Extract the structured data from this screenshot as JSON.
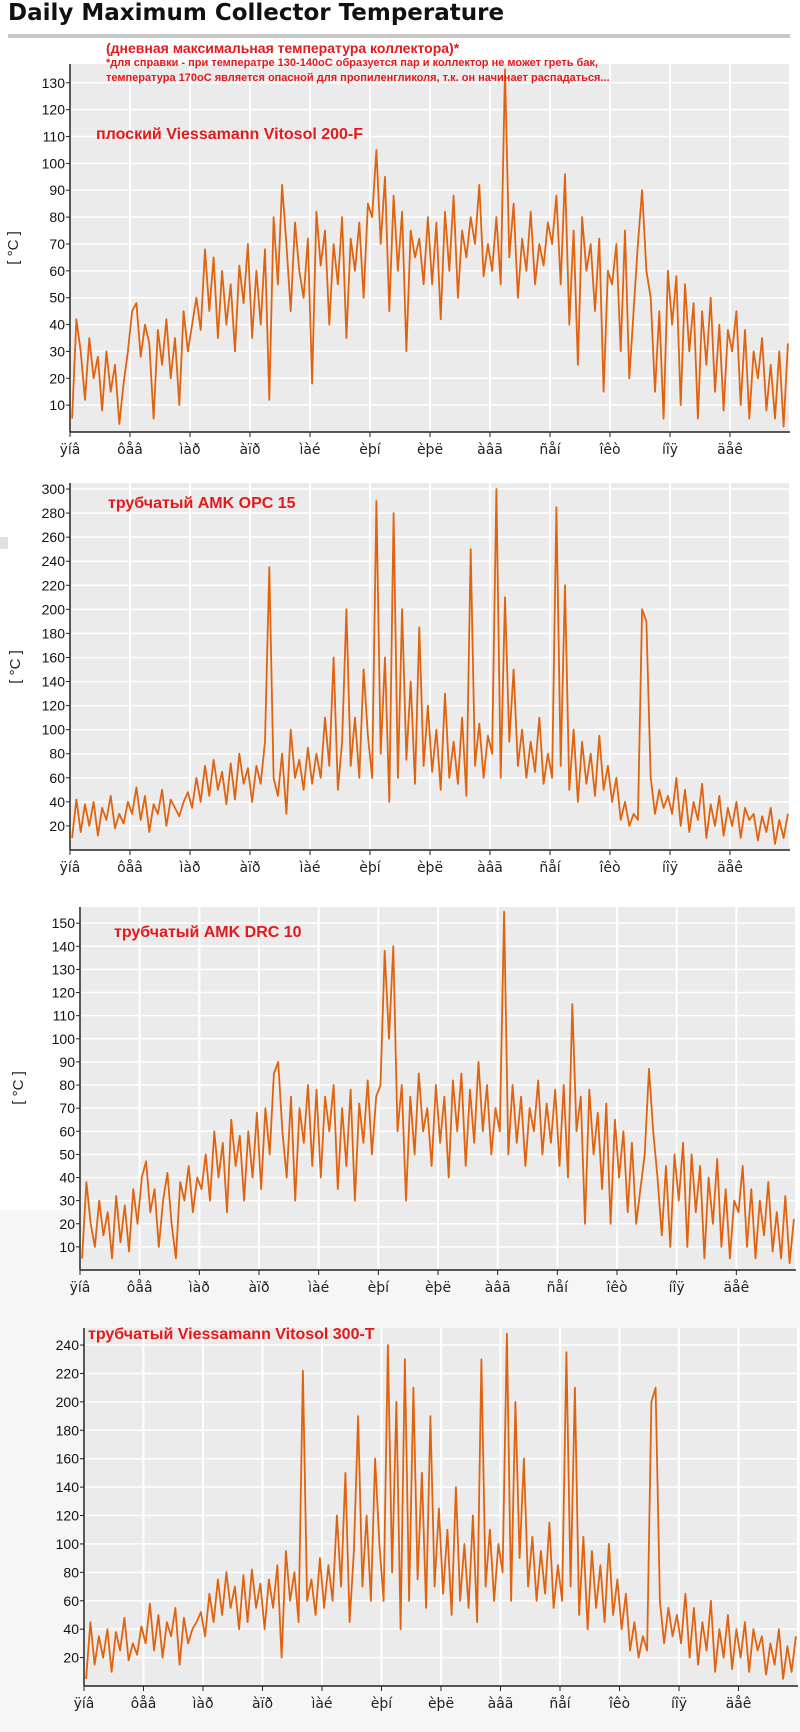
{
  "page": {
    "title": "Daily Maximum Collector Temperature",
    "note_heading": "(дневная максимальная температура коллектора)*",
    "note_line1": "*для справки - при температре 130-140оС образуется пар и коллектор не может греть бак,",
    "note_line2": "температура 170оС является опасной для пропиленгликоля, т.к. он начинает распадаться..."
  },
  "colors": {
    "line": "#e06410",
    "plot_bg": "#ebebeb",
    "grid": "#ffffff",
    "label": "#e31a1c"
  },
  "month_labels": [
    "ÿíâ",
    "ôåâ",
    "ìàð",
    "àïð",
    "ìàé",
    "èþí",
    "èþë",
    "àâã",
    "ñåí",
    "îêò",
    "íîÿ",
    "äåê"
  ],
  "chart_data": [
    {
      "type": "line",
      "label": "плоский Viessamann Vitosol 200-F",
      "ylabel": "[ °C ]",
      "xlabel": "",
      "ylim": [
        0,
        137
      ],
      "yticks": [
        10,
        20,
        30,
        40,
        50,
        60,
        70,
        80,
        90,
        100,
        110,
        120,
        130
      ],
      "x_categories": [
        "ÿíâ",
        "ôåâ",
        "ìàð",
        "àïð",
        "ìàé",
        "èþí",
        "èþë",
        "àâã",
        "ñåí",
        "îêò",
        "íîÿ",
        "äåê"
      ],
      "y_monthly_approx": [
        [
          5,
          42,
          30,
          12,
          35,
          20,
          28,
          8,
          30,
          15,
          25,
          3,
          18,
          30
        ],
        [
          45,
          48,
          28,
          40,
          33,
          5,
          38,
          25,
          42,
          20,
          35,
          10,
          45,
          30
        ],
        [
          40,
          50,
          38,
          68,
          45,
          65,
          35,
          60,
          40,
          55,
          30,
          62,
          48,
          70
        ],
        [
          35,
          60,
          40,
          68,
          12,
          80,
          55,
          92,
          70,
          45,
          78,
          60,
          50,
          72
        ],
        [
          18,
          82,
          62,
          75,
          40,
          70,
          55,
          80,
          35,
          72,
          60,
          78,
          50,
          85
        ],
        [
          80,
          105,
          70,
          95,
          45,
          88,
          60,
          82,
          30,
          75,
          65,
          72,
          55,
          80
        ],
        [
          55,
          78,
          42,
          82,
          60,
          88,
          50,
          75,
          65,
          80,
          70,
          92,
          58,
          70
        ],
        [
          60,
          80,
          55,
          135,
          65,
          85,
          50,
          72,
          60,
          82,
          55,
          70,
          62,
          78
        ],
        [
          70,
          88,
          55,
          96,
          40,
          75,
          25,
          80,
          60,
          70,
          45,
          72,
          15,
          60
        ],
        [
          55,
          70,
          30,
          75,
          20,
          45,
          70,
          90,
          60,
          50,
          15,
          45,
          5,
          60
        ],
        [
          40,
          58,
          10,
          55,
          30,
          48,
          5,
          45,
          25,
          50,
          15,
          40,
          8,
          38
        ],
        [
          30,
          45,
          10,
          38,
          5,
          30,
          20,
          35,
          8,
          25,
          5,
          30,
          2,
          33
        ]
      ]
    },
    {
      "type": "line",
      "label": "трубчатый AMK OPC 15",
      "ylabel": "[ °C ]",
      "xlabel": "",
      "ylim": [
        0,
        305
      ],
      "yticks": [
        20,
        40,
        60,
        80,
        100,
        120,
        140,
        160,
        180,
        200,
        220,
        240,
        260,
        280,
        300
      ],
      "x_categories": [
        "ÿíâ",
        "ôåâ",
        "ìàð",
        "àïð",
        "ìàé",
        "èþí",
        "èþë",
        "àâã",
        "ñåí",
        "îêò",
        "íîÿ",
        "äåê"
      ],
      "y_monthly_approx": [
        [
          10,
          42,
          15,
          38,
          20,
          40,
          12,
          35,
          25,
          45,
          18,
          30,
          22,
          40
        ],
        [
          30,
          52,
          25,
          45,
          15,
          38,
          30,
          50,
          20,
          42,
          35,
          28,
          40,
          48
        ],
        [
          35,
          60,
          40,
          70,
          45,
          75,
          50,
          65,
          38,
          72,
          42,
          80,
          55,
          68
        ],
        [
          40,
          70,
          55,
          90,
          235,
          60,
          45,
          80,
          30,
          100,
          60,
          75,
          50,
          85
        ],
        [
          55,
          80,
          60,
          110,
          70,
          160,
          50,
          90,
          200,
          70,
          110,
          60,
          150,
          95
        ],
        [
          60,
          290,
          80,
          160,
          40,
          280,
          60,
          200,
          75,
          140,
          55,
          185,
          70,
          120
        ],
        [
          65,
          100,
          50,
          130,
          60,
          90,
          55,
          110,
          45,
          250,
          70,
          105,
          60,
          95
        ],
        [
          80,
          300,
          60,
          210,
          90,
          150,
          70,
          100,
          60,
          90,
          65,
          110,
          55,
          80
        ],
        [
          60,
          285,
          70,
          220,
          50,
          100,
          40,
          90,
          55,
          80,
          45,
          95,
          50,
          70
        ],
        [
          40,
          60,
          25,
          40,
          20,
          30,
          25,
          200,
          190,
          60,
          30,
          50,
          35,
          45
        ],
        [
          30,
          60,
          20,
          50,
          15,
          40,
          25,
          55,
          10,
          38,
          20,
          45,
          12,
          35
        ],
        [
          20,
          40,
          10,
          35,
          25,
          30,
          8,
          28,
          15,
          35,
          5,
          25,
          10,
          30
        ]
      ]
    },
    {
      "type": "line",
      "label": "трубчатый AMK DRC 10",
      "ylabel": "[ °C ]",
      "xlabel": "",
      "ylim": [
        0,
        157
      ],
      "yticks": [
        10,
        20,
        30,
        40,
        50,
        60,
        70,
        80,
        90,
        100,
        110,
        120,
        130,
        140,
        150
      ],
      "x_categories": [
        "ÿíâ",
        "ôåâ",
        "ìàð",
        "àïð",
        "ìàé",
        "èþí",
        "èþë",
        "àâã",
        "ñåí",
        "îêò",
        "íîÿ",
        "äåê"
      ],
      "y_monthly_approx": [
        [
          5,
          38,
          20,
          10,
          30,
          15,
          25,
          5,
          32,
          12,
          28,
          8,
          35,
          20
        ],
        [
          40,
          47,
          25,
          35,
          10,
          30,
          42,
          20,
          5,
          38,
          30,
          45,
          25,
          40
        ],
        [
          35,
          50,
          30,
          60,
          40,
          55,
          25,
          65,
          45,
          58,
          30,
          60,
          40,
          68
        ],
        [
          35,
          70,
          50,
          85,
          90,
          60,
          40,
          75,
          30,
          70,
          55,
          80,
          45,
          78
        ],
        [
          40,
          75,
          60,
          80,
          35,
          70,
          45,
          78,
          30,
          72,
          55,
          82,
          50,
          75
        ],
        [
          80,
          138,
          100,
          140,
          60,
          80,
          30,
          75,
          50,
          85,
          60,
          70,
          45,
          80
        ],
        [
          55,
          75,
          40,
          82,
          60,
          85,
          45,
          78,
          55,
          90,
          60,
          80,
          50,
          70
        ],
        [
          60,
          155,
          50,
          80,
          55,
          75,
          45,
          70,
          60,
          82,
          50,
          72,
          55,
          78
        ],
        [
          45,
          80,
          40,
          115,
          60,
          75,
          20,
          78,
          50,
          68,
          35,
          72,
          20,
          65
        ],
        [
          40,
          60,
          25,
          55,
          20,
          35,
          50,
          87,
          60,
          40,
          15,
          45,
          10,
          50
        ],
        [
          30,
          55,
          10,
          50,
          25,
          45,
          5,
          40,
          20,
          48,
          10,
          35,
          5,
          30
        ],
        [
          25,
          45,
          10,
          35,
          5,
          30,
          15,
          38,
          8,
          25,
          5,
          32,
          3,
          22
        ]
      ]
    },
    {
      "type": "line",
      "label": "трубчатый Viessamann Vitosol 300-T",
      "ylabel": "",
      "xlabel": "",
      "ylim": [
        0,
        252
      ],
      "yticks": [
        20,
        40,
        60,
        80,
        100,
        120,
        140,
        160,
        180,
        200,
        220,
        240
      ],
      "x_categories": [
        "ÿíâ",
        "ôåâ",
        "ìàð",
        "àïð",
        "ìàé",
        "èþí",
        "èþë",
        "àâã",
        "ñåí",
        "îêò",
        "íîÿ",
        "äåê"
      ],
      "y_monthly_approx": [
        [
          5,
          45,
          15,
          35,
          20,
          40,
          10,
          38,
          25,
          48,
          18,
          30,
          22,
          42
        ],
        [
          30,
          58,
          25,
          50,
          20,
          45,
          35,
          55,
          15,
          48,
          30,
          40,
          45,
          52
        ],
        [
          35,
          65,
          45,
          75,
          50,
          80,
          55,
          70,
          40,
          78,
          45,
          82,
          55,
          72
        ],
        [
          40,
          75,
          55,
          85,
          20,
          95,
          60,
          80,
          45,
          222,
          60,
          75,
          50,
          90
        ],
        [
          55,
          85,
          60,
          120,
          70,
          150,
          45,
          95,
          190,
          70,
          120,
          60,
          160,
          100
        ],
        [
          60,
          240,
          80,
          200,
          40,
          230,
          60,
          210,
          75,
          150,
          55,
          190,
          70,
          125
        ],
        [
          65,
          110,
          50,
          140,
          60,
          100,
          55,
          120,
          45,
          230,
          70,
          110,
          60,
          100
        ],
        [
          80,
          248,
          60,
          200,
          90,
          160,
          70,
          105,
          60,
          95,
          65,
          115,
          55,
          85
        ],
        [
          60,
          235,
          70,
          210,
          50,
          105,
          40,
          95,
          55,
          85,
          45,
          100,
          50,
          75
        ],
        [
          40,
          65,
          25,
          45,
          20,
          35,
          25,
          200,
          210,
          60,
          30,
          55,
          35,
          50
        ],
        [
          30,
          65,
          20,
          55,
          15,
          45,
          25,
          60,
          10,
          40,
          20,
          50,
          12,
          40
        ],
        [
          20,
          45,
          10,
          40,
          25,
          35,
          8,
          30,
          15,
          40,
          5,
          28,
          10,
          35
        ]
      ]
    }
  ]
}
